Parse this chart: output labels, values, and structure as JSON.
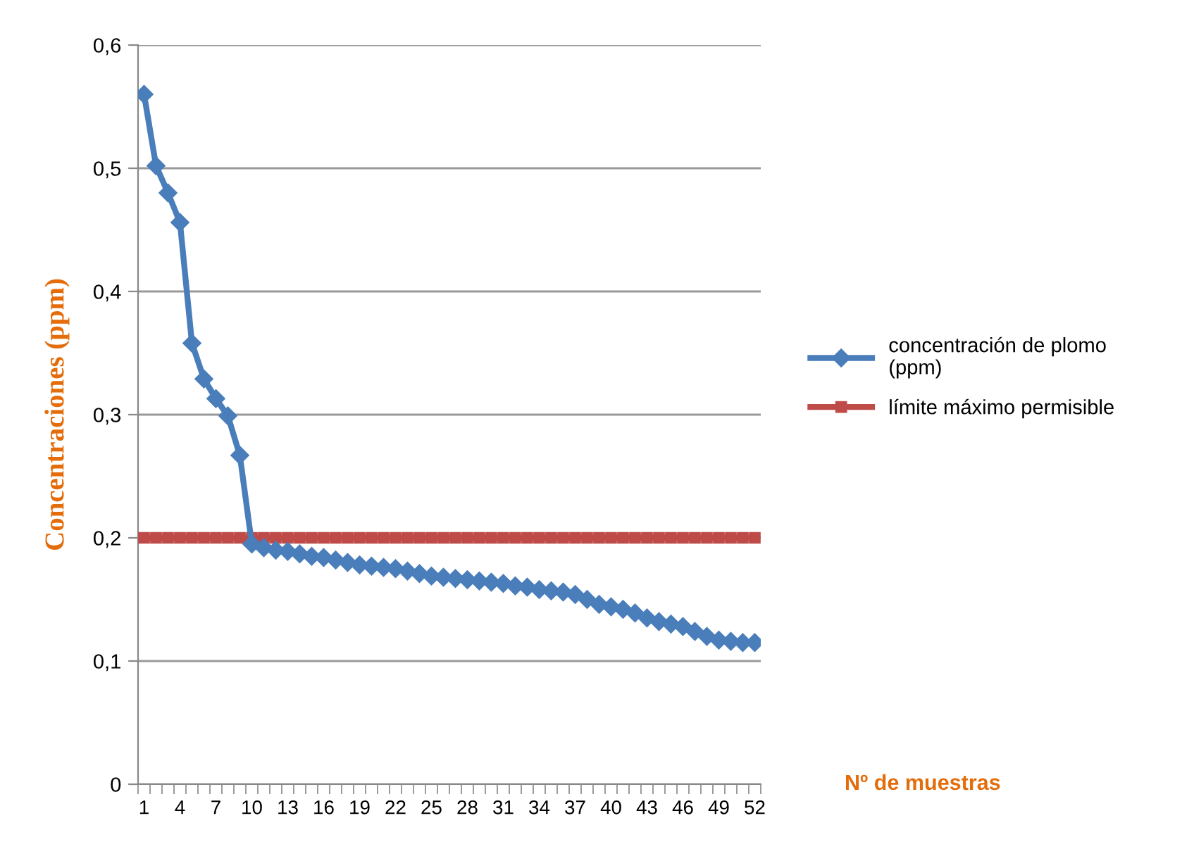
{
  "chart_data": {
    "type": "line",
    "ylabel": "Concentraciones (ppm)",
    "xlabel": "Nº de muestras",
    "categories": [
      "1",
      null,
      null,
      "4",
      null,
      null,
      "7",
      null,
      null,
      "10",
      null,
      null,
      "13",
      null,
      null,
      "16",
      null,
      null,
      "19",
      null,
      null,
      "22",
      null,
      null,
      "25",
      null,
      null,
      "28",
      null,
      null,
      "31",
      null,
      null,
      "34",
      null,
      null,
      "37",
      null,
      null,
      "40",
      null,
      null,
      "43",
      null,
      null,
      "46",
      null,
      null,
      "49",
      null,
      null,
      "52"
    ],
    "series": [
      {
        "name": "concentración de plomo (ppm)",
        "color": "#4a7ebb",
        "marker": "diamond",
        "values": [
          0.56,
          0.502,
          0.48,
          0.456,
          0.358,
          0.329,
          0.313,
          0.299,
          0.267,
          0.195,
          0.192,
          0.19,
          0.189,
          0.187,
          0.185,
          0.184,
          0.182,
          0.18,
          0.178,
          0.177,
          0.176,
          0.175,
          0.173,
          0.171,
          0.169,
          0.168,
          0.167,
          0.166,
          0.165,
          0.164,
          0.163,
          0.161,
          0.16,
          0.158,
          0.157,
          0.156,
          0.154,
          0.15,
          0.146,
          0.144,
          0.142,
          0.139,
          0.135,
          0.132,
          0.13,
          0.128,
          0.124,
          0.12,
          0.117,
          0.116,
          0.115,
          0.115
        ]
      },
      {
        "name": "límite máximo permisible",
        "color": "#be4b48",
        "marker": "square",
        "values": [
          0.2,
          0.2,
          0.2,
          0.2,
          0.2,
          0.2,
          0.2,
          0.2,
          0.2,
          0.2,
          0.2,
          0.2,
          0.2,
          0.2,
          0.2,
          0.2,
          0.2,
          0.2,
          0.2,
          0.2,
          0.2,
          0.2,
          0.2,
          0.2,
          0.2,
          0.2,
          0.2,
          0.2,
          0.2,
          0.2,
          0.2,
          0.2,
          0.2,
          0.2,
          0.2,
          0.2,
          0.2,
          0.2,
          0.2,
          0.2,
          0.2,
          0.2,
          0.2,
          0.2,
          0.2,
          0.2,
          0.2,
          0.2,
          0.2,
          0.2,
          0.2,
          0.2
        ]
      }
    ],
    "ylim": [
      0,
      0.6
    ],
    "yticks": [
      0,
      {
        "value": 0.1,
        "label": "0,1"
      },
      {
        "value": 0.2,
        "label": "0,2"
      },
      {
        "value": 0.3,
        "label": "0,3"
      },
      {
        "value": 0.4,
        "label": "0,4"
      },
      {
        "value": 0.5,
        "label": "0,5"
      },
      {
        "value": 0.6,
        "label": "0,6"
      }
    ],
    "grid": "y",
    "legend": "right",
    "line_style": "solid"
  }
}
